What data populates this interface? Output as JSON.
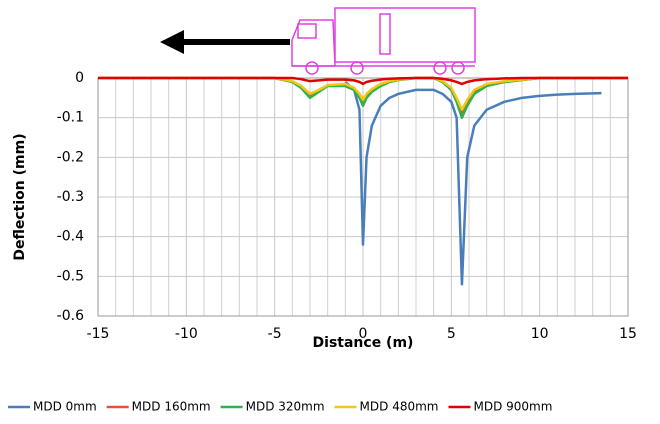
{
  "chart_data": {
    "type": "line",
    "x": [
      -15,
      -10,
      -5,
      -4,
      -3.5,
      -3,
      -2.5,
      -2,
      -1,
      -0.5,
      -0.2,
      0,
      0.2,
      0.5,
      1,
      1.5,
      2,
      3,
      4,
      4.5,
      5,
      5.3,
      5.6,
      5.9,
      6.3,
      7,
      8,
      9,
      10,
      11,
      12,
      13.5,
      15
    ],
    "series": [
      {
        "name": "MDD 0mm",
        "color": "#4a7ebb",
        "values": [
          null,
          null,
          null,
          null,
          null,
          null,
          null,
          null,
          -0.01,
          -0.03,
          -0.08,
          -0.42,
          -0.2,
          -0.12,
          -0.07,
          -0.05,
          -0.04,
          -0.03,
          -0.03,
          -0.04,
          -0.06,
          -0.1,
          -0.52,
          -0.2,
          -0.12,
          -0.08,
          -0.06,
          -0.05,
          -0.045,
          -0.042,
          -0.04,
          -0.038,
          null
        ]
      },
      {
        "name": "MDD 160mm",
        "color": "#e8503a",
        "values": [
          0,
          0,
          0,
          -0.01,
          -0.02,
          -0.045,
          -0.03,
          -0.02,
          -0.02,
          -0.03,
          -0.045,
          -0.065,
          -0.045,
          -0.03,
          -0.02,
          -0.01,
          -0.005,
          0,
          0,
          -0.01,
          -0.03,
          -0.055,
          -0.09,
          -0.065,
          -0.035,
          -0.02,
          -0.01,
          -0.005,
          0,
          0,
          0,
          0,
          0
        ]
      },
      {
        "name": "MDD 320mm",
        "color": "#2db34a",
        "values": [
          0,
          0,
          0,
          -0.01,
          -0.025,
          -0.05,
          -0.035,
          -0.02,
          -0.02,
          -0.03,
          -0.05,
          -0.07,
          -0.05,
          -0.035,
          -0.02,
          -0.01,
          -0.005,
          0,
          0,
          -0.01,
          -0.03,
          -0.06,
          -0.1,
          -0.07,
          -0.04,
          -0.02,
          -0.01,
          -0.005,
          0,
          0,
          0,
          0,
          0
        ]
      },
      {
        "name": "MDD 480mm",
        "color": "#f5c518",
        "values": [
          0,
          0,
          0,
          -0.008,
          -0.02,
          -0.04,
          -0.03,
          -0.018,
          -0.015,
          -0.025,
          -0.04,
          -0.055,
          -0.04,
          -0.028,
          -0.015,
          -0.008,
          -0.004,
          0,
          0,
          -0.008,
          -0.025,
          -0.05,
          -0.08,
          -0.055,
          -0.03,
          -0.015,
          -0.008,
          -0.004,
          0,
          0,
          0,
          0,
          0
        ]
      },
      {
        "name": "MDD 900mm",
        "color": "#e00000",
        "values": [
          0,
          0,
          0,
          0,
          -0.003,
          -0.008,
          -0.006,
          -0.004,
          -0.004,
          -0.006,
          -0.01,
          -0.015,
          -0.01,
          -0.007,
          -0.004,
          -0.002,
          -0.001,
          0,
          0,
          -0.002,
          -0.006,
          -0.01,
          -0.015,
          -0.01,
          -0.006,
          -0.003,
          -0.001,
          0,
          0,
          0,
          0,
          0,
          0
        ]
      }
    ],
    "x_label": "Distance (m)",
    "y_label": "Deflection (mm)",
    "xlim": [
      -15,
      15
    ],
    "xticks": [
      -15,
      -10,
      -5,
      0,
      5,
      10,
      15
    ],
    "ylim": [
      -0.6,
      0
    ],
    "yticks": [
      0,
      -0.1,
      -0.2,
      -0.3,
      -0.4,
      -0.5,
      -0.6
    ],
    "grid": true,
    "legend": "bottom"
  }
}
